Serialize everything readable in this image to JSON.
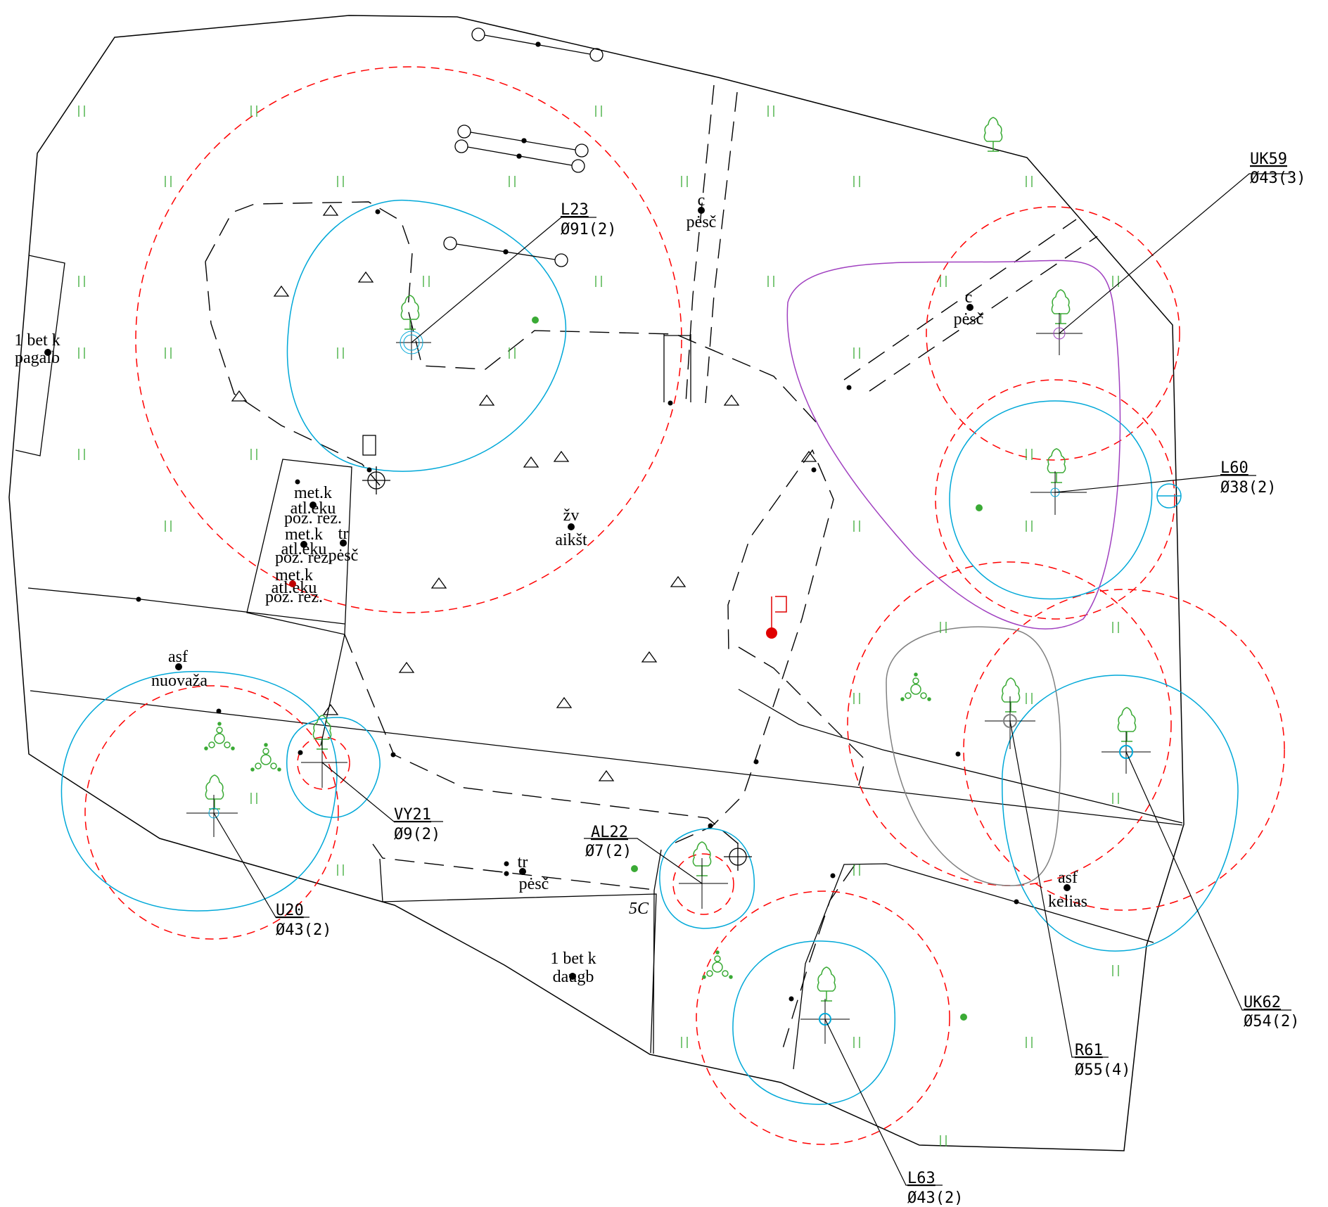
{
  "colors": {
    "background": "#ffffff",
    "boundary": "#000000",
    "protection_zone": "#ff0000",
    "crown": "#00a8d8",
    "vegetation": "#3aaa35",
    "highlight_zone": "#a040c0",
    "grey_zone": "#808080",
    "marker": "#e00000"
  },
  "icons": {
    "tree": "tree-icon",
    "shrub": "shrub-cluster-icon",
    "grass": "grass-hatch-icon",
    "pole": "pole-icon",
    "hydrant": "hydrant-icon",
    "slope": "slope-triangle-icon"
  },
  "tree_labels": [
    {
      "code": "L23",
      "size": "Ø91(2)"
    },
    {
      "code": "UK59",
      "size": "Ø43(3)"
    },
    {
      "code": "L60",
      "size": "Ø38(2)"
    },
    {
      "code": "VY21",
      "size": "Ø9(2)"
    },
    {
      "code": "AL22",
      "size": "Ø7(2)"
    },
    {
      "code": "U20",
      "size": "Ø43(2)"
    },
    {
      "code": "UK62",
      "size": "Ø54(2)"
    },
    {
      "code": "R61",
      "size": "Ø55(4)"
    },
    {
      "code": "L63",
      "size": "Ø43(2)"
    }
  ],
  "surface_labels": {
    "c_pesc_top": [
      "c",
      "pėsč"
    ],
    "c_pesc_right": [
      "c",
      "pėsč"
    ],
    "bet_pagalb": [
      "1 bet k",
      "pagalb"
    ],
    "met_1": [
      "met.k",
      "atl.eku",
      "poz. rez."
    ],
    "met_2": [
      "met.k",
      "atl.eku",
      "poz. rez."
    ],
    "met_3": [
      "met.k",
      "atl.eku",
      "poz. rez."
    ],
    "tr_pesc_mid": [
      "tr",
      "pėsč"
    ],
    "zv_aiksk": [
      "žv",
      "aikšt"
    ],
    "asf_nuovaza": [
      "asf",
      "nuovaža"
    ],
    "tr_pesc_bottom": [
      "tr",
      "pėsč"
    ],
    "five_c": "5C",
    "bet_daugb": [
      "1 bet k",
      "daugb"
    ],
    "asf_kelias": [
      "asf",
      "kelias"
    ]
  }
}
